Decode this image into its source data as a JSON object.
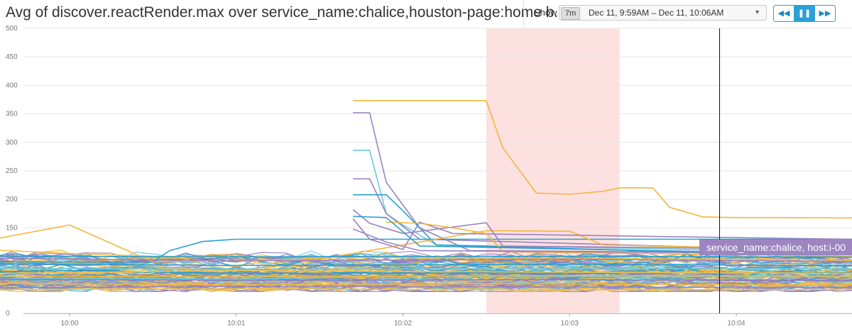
{
  "header": {
    "title": "Avg of discover.reactRender.max over service_name:chalice,houston-page:home b...",
    "show_label": "Show",
    "range_badge": "7m",
    "time_range": "Dec 11, 9:59AM – Dec 11, 10:06AM",
    "buttons": [
      {
        "name": "rewind",
        "glyph": "◀◀"
      },
      {
        "name": "pause",
        "glyph": "❚❚"
      },
      {
        "name": "forward",
        "glyph": "▶▶"
      }
    ]
  },
  "tooltip": {
    "label": "service_name:chalice, host:i-00"
  },
  "chart_data": {
    "type": "line",
    "x_label": "",
    "y_label": "",
    "ylim": [
      0,
      500
    ],
    "y_ticks": [
      0,
      50,
      100,
      150,
      200,
      250,
      300,
      350,
      400,
      450,
      500
    ],
    "xlim_minutes": [
      9.95,
      10.07
    ],
    "x_ticks": [
      {
        "value": 10.0,
        "label": "10:00"
      },
      {
        "value": 10.01,
        "label": "10:01"
      },
      {
        "value": 10.02,
        "label": "10:02"
      },
      {
        "value": 10.03,
        "label": "10:03"
      },
      {
        "value": 10.04,
        "label": "10:04"
      }
    ],
    "grid": true,
    "highlight_band": {
      "from": 10.025,
      "to": 10.033,
      "color": "#fde0e0"
    },
    "cursor": 10.039,
    "palette": [
      "#f3b638",
      "#9b82c0",
      "#2a9fcf",
      "#6cc9dc",
      "#f2c14a",
      "#8f7bbd"
    ],
    "series": [
      {
        "color": "#f3b638",
        "x": [
          10.017,
          10.025,
          10.026,
          10.028,
          10.03,
          10.032,
          10.033,
          10.035,
          10.036,
          10.038,
          10.04,
          10.07
        ],
        "y": [
          373,
          373,
          290,
          211,
          209,
          214,
          220,
          220,
          186,
          169,
          168,
          165
        ]
      },
      {
        "color": "#9b82c0",
        "x": [
          10.017,
          10.018,
          10.019,
          10.021,
          10.024,
          10.07
        ],
        "y": [
          352,
          352,
          230,
          150,
          110,
          100
        ]
      },
      {
        "color": "#6cc9dc",
        "x": [
          10.017,
          10.018,
          10.019,
          10.02,
          10.022,
          10.07
        ],
        "y": [
          286,
          286,
          175,
          155,
          120,
          95
        ]
      },
      {
        "color": "#9b82c0",
        "x": [
          10.017,
          10.018,
          10.019,
          10.021,
          10.07
        ],
        "y": [
          236,
          236,
          175,
          130,
          90
        ]
      },
      {
        "color": "#2a9fcf",
        "x": [
          10.017,
          10.019,
          10.02,
          10.021,
          10.022,
          10.07
        ],
        "y": [
          208,
          208,
          180,
          150,
          120,
          80
        ]
      },
      {
        "color": "#2a9fcf",
        "x": [
          9.95,
          9.955,
          9.96,
          9.965,
          9.97,
          10.005,
          10.006,
          10.008,
          10.01,
          10.07
        ],
        "y": [
          92,
          105,
          98,
          85,
          90,
          90,
          110,
          126,
          130,
          130
        ]
      },
      {
        "color": "#f3b638",
        "x": [
          9.95,
          9.955,
          9.96,
          9.965,
          9.97,
          9.975,
          9.98,
          9.99,
          10.0,
          10.005,
          10.015,
          10.025,
          10.03,
          10.032,
          10.07
        ],
        "y": [
          120,
          112,
          108,
          113,
          120,
          117,
          110,
          100,
          155,
          90,
          95,
          145,
          144,
          120,
          95
        ]
      },
      {
        "color": "#f2c14a",
        "x": [
          9.95,
          9.96,
          9.97,
          9.975,
          9.98,
          9.99,
          10.0,
          10.005,
          10.07
        ],
        "y": [
          108,
          110,
          112,
          118,
          119,
          118,
          105,
          100,
          90
        ]
      },
      {
        "color": "#9b82c0",
        "x": [
          10.017,
          10.018,
          10.02,
          10.025,
          10.026,
          10.07
        ],
        "y": [
          182,
          158,
          140,
          159,
          118,
          105
        ]
      },
      {
        "color": "#9b82c0",
        "x": [
          10.017,
          10.018,
          10.02,
          10.021,
          10.023,
          10.07
        ],
        "y": [
          166,
          130,
          112,
          160,
          140,
          120
        ]
      },
      {
        "color": "#f3b638",
        "x": [
          10.019,
          10.021,
          10.023,
          10.025,
          10.026,
          10.07
        ],
        "y": [
          160,
          158,
          150,
          140,
          108,
          92
        ]
      },
      {
        "color": "#2a9fcf",
        "x": [
          9.95,
          9.96,
          9.962,
          9.968,
          9.975,
          9.985,
          9.99,
          10.0,
          10.01,
          10.07
        ],
        "y": [
          80,
          70,
          115,
          85,
          65,
          80,
          70,
          75,
          70,
          72
        ]
      },
      {
        "color": "#6cc9dc",
        "x": [
          9.95,
          9.96,
          9.97,
          9.98,
          9.99,
          10.0,
          10.01,
          10.02,
          10.07
        ],
        "y": [
          60,
          62,
          55,
          60,
          58,
          62,
          60,
          65,
          63
        ]
      },
      {
        "color": "#f3b638",
        "x": [
          9.95,
          9.965,
          9.98,
          9.995,
          10.01,
          10.025,
          10.04,
          10.07
        ],
        "y": [
          50,
          52,
          48,
          53,
          50,
          52,
          50,
          51
        ]
      },
      {
        "color": "#9b82c0",
        "x": [
          9.95,
          9.97,
          9.99,
          10.01,
          10.03,
          10.05,
          10.07
        ],
        "y": [
          95,
          92,
          98,
          92,
          95,
          90,
          92
        ]
      },
      {
        "color": "#f2c14a",
        "x": [
          9.95,
          9.97,
          9.99,
          10.01,
          10.03,
          10.05,
          10.07
        ],
        "y": [
          70,
          72,
          68,
          75,
          72,
          70,
          74
        ]
      },
      {
        "color": "#2a9fcf",
        "x": [
          9.95,
          9.97,
          9.99,
          10.01,
          10.03,
          10.05,
          10.07
        ],
        "y": [
          85,
          82,
          88,
          84,
          86,
          83,
          85
        ]
      },
      {
        "color": "#9b82c0",
        "x": [
          9.95,
          9.97,
          9.99,
          10.01,
          10.03,
          10.05,
          10.07
        ],
        "y": [
          45,
          48,
          44,
          47,
          46,
          45,
          47
        ]
      },
      {
        "color": "#6cc9dc",
        "x": [
          9.95,
          9.97,
          9.99,
          10.01,
          10.03,
          10.05,
          10.07
        ],
        "y": [
          78,
          76,
          80,
          77,
          79,
          78,
          80
        ]
      },
      {
        "color": "#f3b638",
        "x": [
          9.95,
          9.97,
          9.99,
          10.01,
          10.03,
          10.05,
          10.07
        ],
        "y": [
          65,
          63,
          66,
          64,
          66,
          65,
          64
        ]
      },
      {
        "color": "#8f7bbd",
        "x": [
          9.95,
          9.97,
          9.99,
          10.01,
          10.03,
          10.05,
          10.07
        ],
        "y": [
          58,
          57,
          60,
          58,
          59,
          57,
          58
        ]
      },
      {
        "color": "#2a9fcf",
        "x": [
          9.95,
          9.97,
          9.99,
          10.01,
          10.03,
          10.05,
          10.07
        ],
        "y": [
          102,
          98,
          101,
          99,
          100,
          98,
          99
        ]
      },
      {
        "color": "#f2c14a",
        "x": [
          9.95,
          9.97,
          9.99,
          10.01,
          10.03,
          10.05,
          10.07
        ],
        "y": [
          40,
          42,
          41,
          43,
          41,
          42,
          40
        ]
      },
      {
        "color": "#9b82c0",
        "x": [
          10.017,
          10.019,
          10.021,
          10.07
        ],
        "y": [
          148,
          125,
          110,
          100
        ]
      },
      {
        "color": "#2a9fcf",
        "x": [
          10.017,
          10.019,
          10.021,
          10.07
        ],
        "y": [
          170,
          168,
          118,
          90
        ]
      }
    ]
  }
}
